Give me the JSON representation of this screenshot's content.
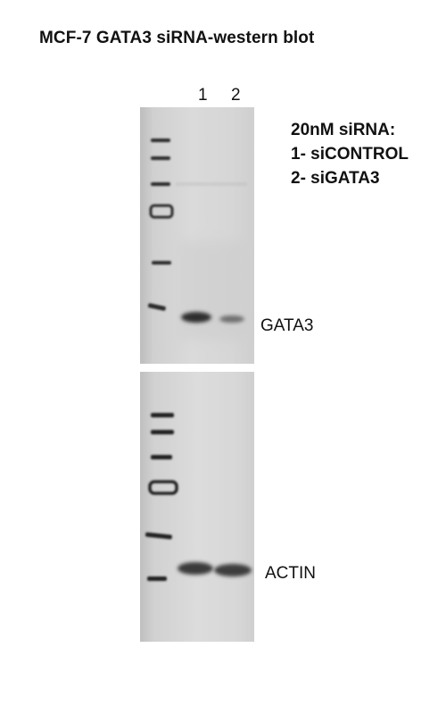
{
  "title": "MCF-7 GATA3 siRNA-western blot",
  "lanes": [
    "1",
    "2"
  ],
  "legend": {
    "line1": "20nM siRNA:",
    "line2": "1- siCONTROL",
    "line3": "2- siGATA3"
  },
  "bands": {
    "top_label": "GATA3",
    "bottom_label": "ACTIN"
  }
}
